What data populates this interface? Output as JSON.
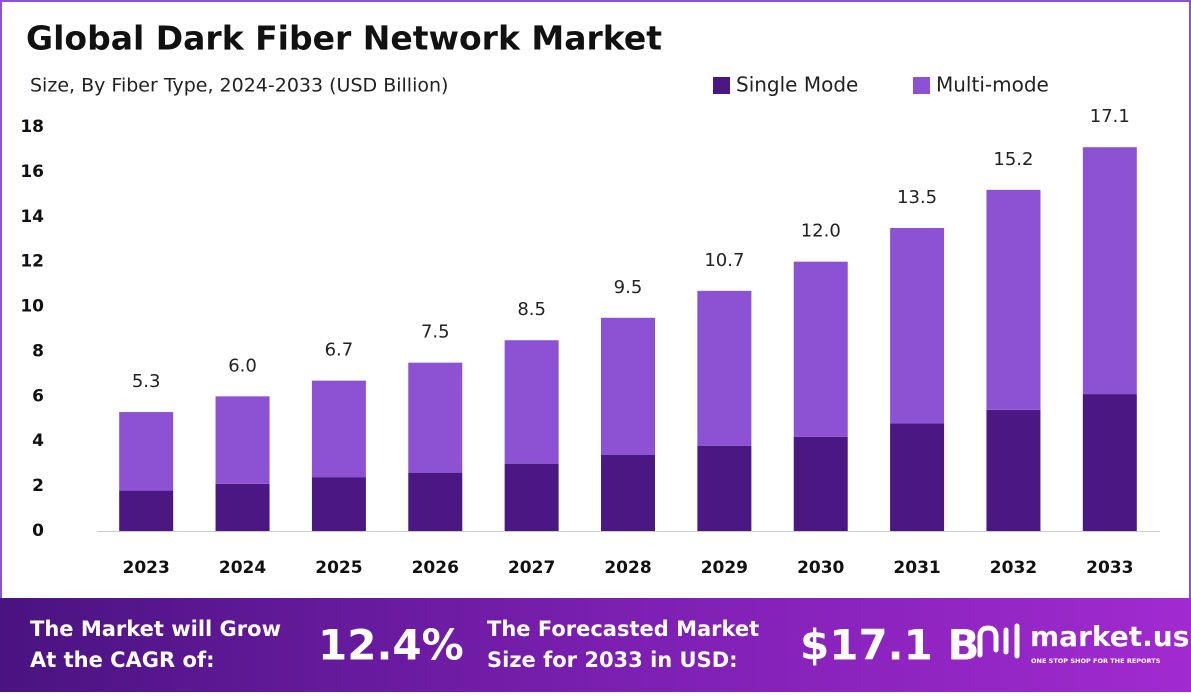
{
  "chart_data": {
    "type": "stacked_bar",
    "title": "Global Dark Fiber Network Market",
    "subtitle": "Size, By Fiber Type, 2024-2033 (USD Billion)",
    "categories": [
      "2023",
      "2024",
      "2025",
      "2026",
      "2027",
      "2028",
      "2029",
      "2030",
      "2031",
      "2032",
      "2033"
    ],
    "series": [
      {
        "name": "Single Mode",
        "color": "#4b1883",
        "values": [
          1.8,
          2.1,
          2.4,
          2.6,
          3.0,
          3.4,
          3.8,
          4.2,
          4.8,
          5.4,
          6.1
        ]
      },
      {
        "name": "Multi-mode",
        "color": "#8c52d3",
        "values": [
          3.5,
          3.9,
          4.3,
          4.9,
          5.5,
          6.1,
          6.9,
          7.8,
          8.7,
          9.8,
          11.0
        ]
      }
    ],
    "totals": [
      5.3,
      6,
      6.7,
      7.5,
      8.5,
      9.5,
      10.7,
      12,
      13.5,
      15.2,
      17.1
    ],
    "total_labels": [
      "5.3",
      "6.0",
      "6.7",
      "7.5",
      "8.5",
      "9.5",
      "10.7",
      "12.0",
      "13.5",
      "15.2",
      "17.1"
    ],
    "ylim": [
      0,
      18
    ],
    "yticks": [
      0,
      2,
      4,
      6,
      8,
      10,
      12,
      14,
      16,
      18
    ],
    "grid": false
  },
  "footer": {
    "cagr_text": [
      "The Market will Grow",
      "At the CAGR of:"
    ],
    "cagr": "12.4%",
    "forecast_text": [
      "The Forecasted Market",
      "Size for 2033 in USD:"
    ],
    "forecast_value": "$17.1 B"
  },
  "brand": {
    "name": "market.us",
    "tagline": "ONE STOP SHOP FOR THE REPORTS"
  }
}
